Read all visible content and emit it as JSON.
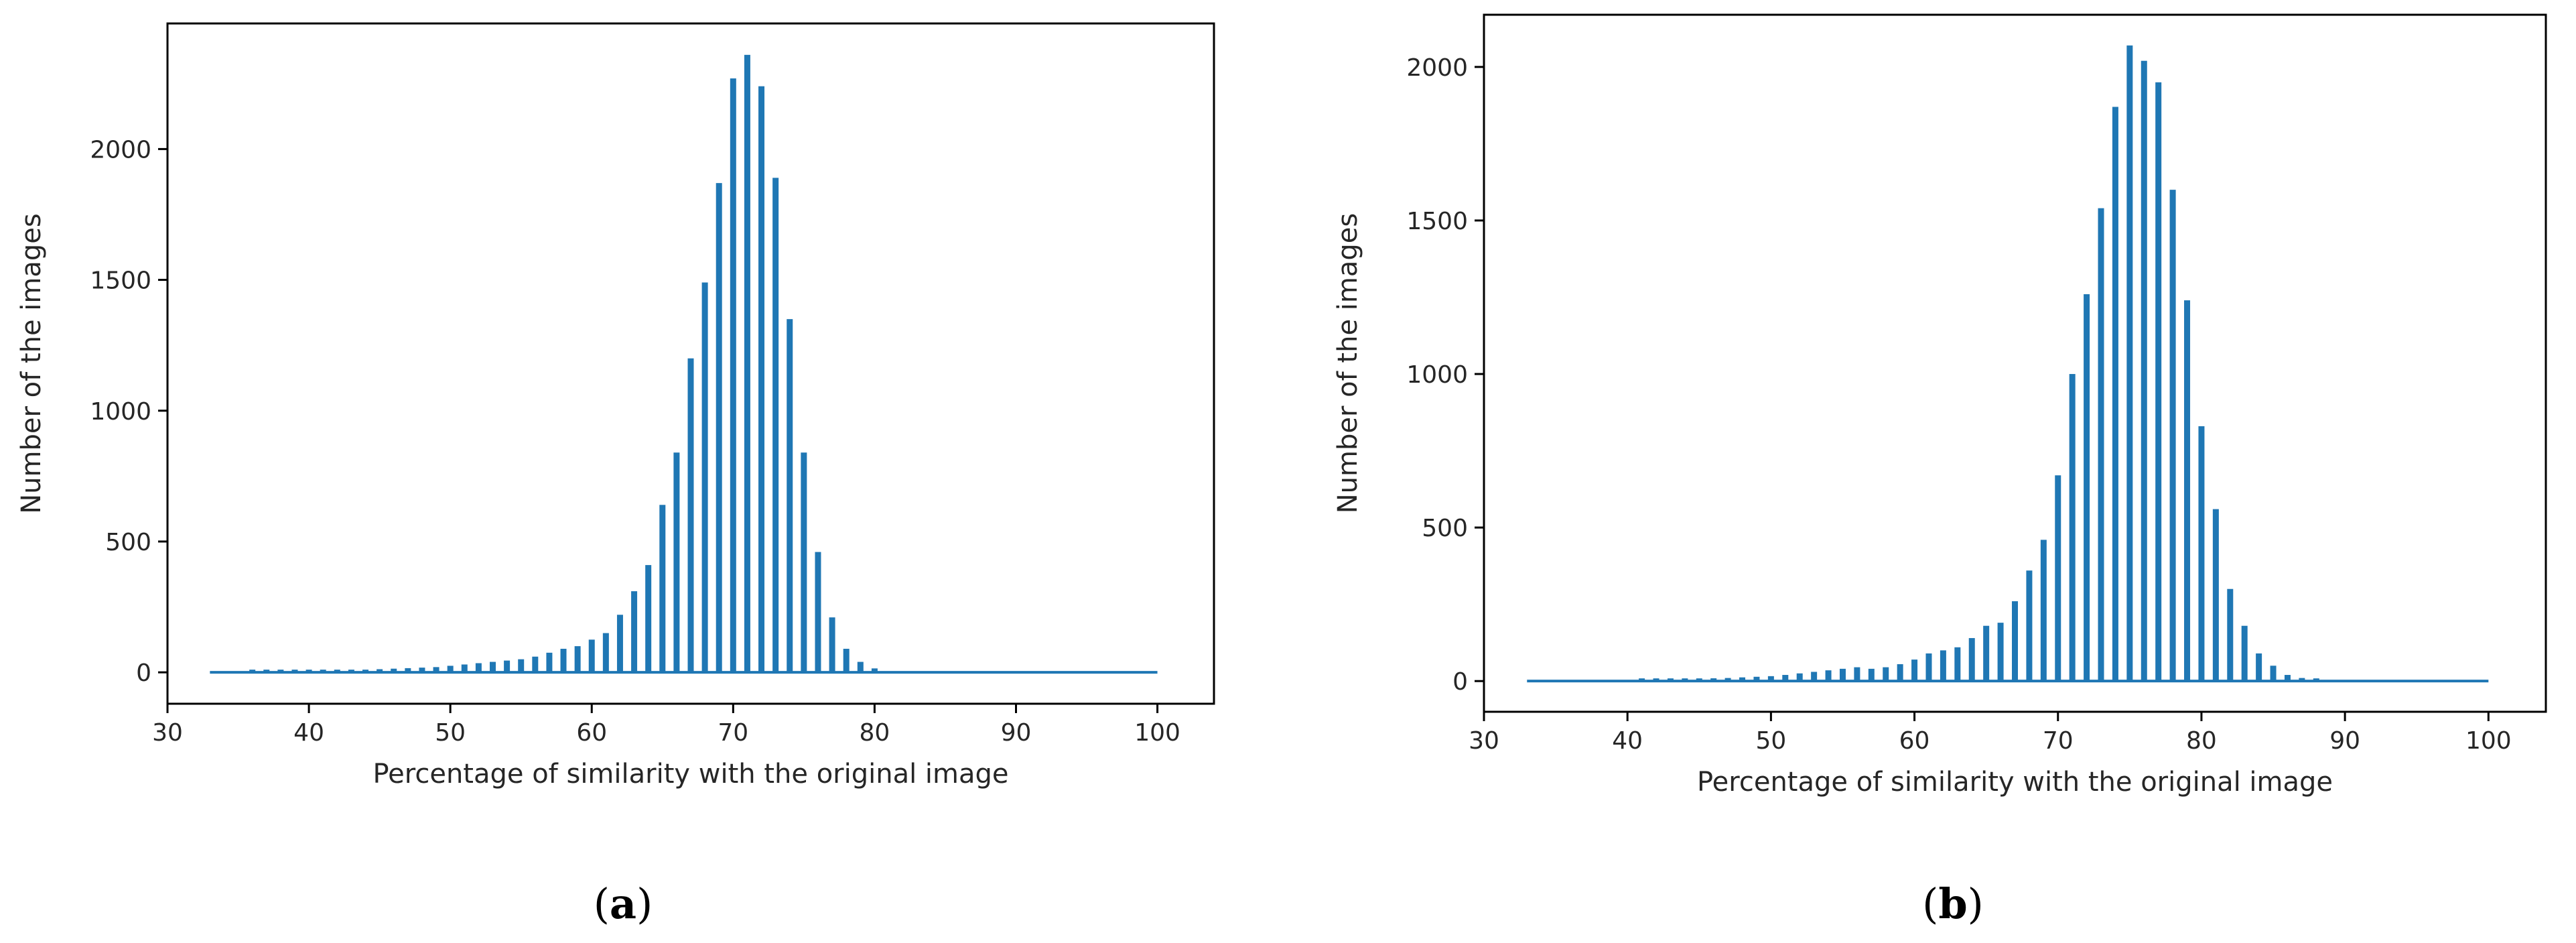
{
  "chart_data": [
    {
      "type": "bar",
      "panel": "a",
      "caption": "(a)",
      "caption_open": "(",
      "caption_letter": "a",
      "caption_close": ")",
      "xlabel": "Percentage of similarity with the original image",
      "ylabel": "Number of the images",
      "xlim": [
        30,
        104
      ],
      "ylim": [
        -120,
        2480
      ],
      "xticks": [
        30,
        40,
        50,
        60,
        70,
        80,
        90,
        100
      ],
      "yticks": [
        0,
        500,
        1000,
        1500,
        2000
      ],
      "color": "#1f77b4",
      "baseline": [
        33,
        100
      ],
      "x": [
        36,
        37,
        38,
        39,
        40,
        41,
        42,
        43,
        44,
        45,
        46,
        47,
        48,
        49,
        50,
        51,
        52,
        53,
        54,
        55,
        56,
        57,
        58,
        59,
        60,
        61,
        62,
        63,
        64,
        65,
        66,
        67,
        68,
        69,
        70,
        71,
        72,
        73,
        74,
        75,
        76,
        77,
        78,
        79,
        80
      ],
      "values": [
        3,
        3,
        3,
        4,
        5,
        6,
        7,
        8,
        10,
        12,
        14,
        16,
        18,
        20,
        25,
        30,
        35,
        40,
        45,
        50,
        60,
        75,
        90,
        100,
        125,
        150,
        220,
        310,
        410,
        640,
        840,
        1200,
        1490,
        1870,
        2270,
        2360,
        2240,
        1890,
        1350,
        840,
        460,
        210,
        90,
        40,
        15
      ]
    },
    {
      "type": "bar",
      "panel": "b",
      "caption": "(b)",
      "caption_open": "(",
      "caption_letter": "b",
      "caption_close": ")",
      "xlabel": "Percentage of similarity with the original image",
      "ylabel": "Number of the images",
      "xlim": [
        30,
        104
      ],
      "ylim": [
        -100,
        2170
      ],
      "xticks": [
        30,
        40,
        50,
        60,
        70,
        80,
        90,
        100
      ],
      "yticks": [
        0,
        500,
        1000,
        1500,
        2000
      ],
      "color": "#1f77b4",
      "baseline": [
        33,
        100
      ],
      "x": [
        41,
        42,
        43,
        44,
        45,
        46,
        47,
        48,
        49,
        50,
        51,
        52,
        53,
        54,
        55,
        56,
        57,
        58,
        59,
        60,
        61,
        62,
        63,
        64,
        65,
        66,
        67,
        68,
        69,
        70,
        71,
        72,
        73,
        74,
        75,
        76,
        77,
        78,
        79,
        80,
        81,
        82,
        83,
        84,
        85,
        86,
        87,
        88
      ],
      "values": [
        3,
        4,
        6,
        7,
        8,
        9,
        10,
        12,
        14,
        16,
        20,
        25,
        30,
        35,
        40,
        45,
        40,
        45,
        55,
        70,
        90,
        100,
        110,
        140,
        180,
        190,
        260,
        360,
        460,
        670,
        1000,
        1260,
        1540,
        1870,
        2070,
        2020,
        1950,
        1600,
        1240,
        830,
        560,
        300,
        180,
        90,
        50,
        20,
        10,
        5
      ]
    }
  ]
}
